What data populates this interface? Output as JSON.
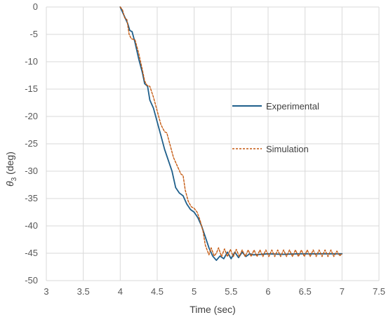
{
  "chart_data": {
    "type": "line",
    "xlabel": "Time (sec)",
    "ylabel_symbol": "θ",
    "ylabel_sub": "3",
    "ylabel_unit": " (deg)",
    "xlim": [
      3,
      7.5
    ],
    "ylim": [
      -50,
      0
    ],
    "xticks": [
      "3",
      "3.5",
      "4",
      "4.5",
      "5",
      "5.5",
      "6",
      "6.5",
      "7",
      "7.5"
    ],
    "yticks": [
      "0",
      "-5",
      "-10",
      "-15",
      "-20",
      "-25",
      "-30",
      "-35",
      "-40",
      "-45",
      "-50"
    ],
    "grid": true,
    "legend_position": "right-middle",
    "series": [
      {
        "name": "Experimental",
        "color": "#1f5f8b",
        "dash": "solid",
        "points": [
          [
            4.0,
            0.0
          ],
          [
            4.05,
            -1.5
          ],
          [
            4.1,
            -3.0
          ],
          [
            4.13,
            -4.3
          ],
          [
            4.16,
            -4.5
          ],
          [
            4.2,
            -6.5
          ],
          [
            4.25,
            -9.5
          ],
          [
            4.3,
            -12.0
          ],
          [
            4.33,
            -14.0
          ],
          [
            4.37,
            -14.5
          ],
          [
            4.4,
            -17.0
          ],
          [
            4.45,
            -18.5
          ],
          [
            4.5,
            -21.0
          ],
          [
            4.55,
            -23.5
          ],
          [
            4.6,
            -26.0
          ],
          [
            4.65,
            -28.0
          ],
          [
            4.7,
            -30.0
          ],
          [
            4.75,
            -33.0
          ],
          [
            4.8,
            -34.0
          ],
          [
            4.85,
            -34.5
          ],
          [
            4.9,
            -36.0
          ],
          [
            4.95,
            -37.0
          ],
          [
            5.0,
            -37.5
          ],
          [
            5.05,
            -38.5
          ],
          [
            5.1,
            -40.0
          ],
          [
            5.15,
            -42.0
          ],
          [
            5.2,
            -44.0
          ],
          [
            5.25,
            -45.5
          ],
          [
            5.3,
            -46.3
          ],
          [
            5.35,
            -45.5
          ],
          [
            5.4,
            -46.0
          ],
          [
            5.45,
            -44.8
          ],
          [
            5.5,
            -46.0
          ],
          [
            5.55,
            -44.8
          ],
          [
            5.6,
            -45.8
          ],
          [
            5.65,
            -44.8
          ],
          [
            5.7,
            -45.6
          ],
          [
            5.75,
            -45.1
          ],
          [
            5.8,
            -45.3
          ],
          [
            5.9,
            -45.2
          ],
          [
            6.0,
            -45.1
          ],
          [
            6.2,
            -45.2
          ],
          [
            6.4,
            -45.1
          ],
          [
            6.6,
            -45.1
          ],
          [
            6.8,
            -45.1
          ],
          [
            7.0,
            -45.1
          ]
        ]
      },
      {
        "name": "Simulation",
        "color": "#c55a11",
        "dash": "dashed",
        "points": [
          [
            4.0,
            0.0
          ],
          [
            4.03,
            -0.5
          ],
          [
            4.06,
            -2.0
          ],
          [
            4.09,
            -2.3
          ],
          [
            4.12,
            -5.0
          ],
          [
            4.15,
            -5.8
          ],
          [
            4.2,
            -6.0
          ],
          [
            4.25,
            -8.5
          ],
          [
            4.3,
            -11.5
          ],
          [
            4.33,
            -13.5
          ],
          [
            4.36,
            -14.3
          ],
          [
            4.4,
            -14.5
          ],
          [
            4.45,
            -16.5
          ],
          [
            4.5,
            -19.0
          ],
          [
            4.55,
            -21.5
          ],
          [
            4.6,
            -22.8
          ],
          [
            4.63,
            -23.0
          ],
          [
            4.67,
            -25.0
          ],
          [
            4.72,
            -27.5
          ],
          [
            4.77,
            -29.0
          ],
          [
            4.82,
            -30.5
          ],
          [
            4.85,
            -30.8
          ],
          [
            4.88,
            -33.5
          ],
          [
            4.92,
            -35.5
          ],
          [
            4.96,
            -36.5
          ],
          [
            5.0,
            -36.8
          ],
          [
            5.04,
            -37.5
          ],
          [
            5.08,
            -39.0
          ],
          [
            5.12,
            -41.0
          ],
          [
            5.15,
            -43.5
          ],
          [
            5.2,
            -45.3
          ],
          [
            5.23,
            -44.0
          ],
          [
            5.27,
            -45.5
          ],
          [
            5.3,
            -45.0
          ],
          [
            5.33,
            -44.0
          ],
          [
            5.37,
            -45.6
          ],
          [
            5.41,
            -44.2
          ],
          [
            5.45,
            -45.6
          ],
          [
            5.49,
            -44.3
          ],
          [
            5.53,
            -45.6
          ],
          [
            5.57,
            -44.3
          ],
          [
            5.61,
            -45.6
          ],
          [
            5.65,
            -44.4
          ],
          [
            5.69,
            -45.6
          ],
          [
            5.73,
            -44.4
          ],
          [
            5.77,
            -45.6
          ],
          [
            5.81,
            -44.4
          ],
          [
            5.85,
            -45.6
          ],
          [
            5.89,
            -44.4
          ],
          [
            5.93,
            -45.6
          ],
          [
            5.97,
            -44.4
          ],
          [
            6.01,
            -45.6
          ],
          [
            6.05,
            -44.4
          ],
          [
            6.09,
            -45.6
          ],
          [
            6.13,
            -44.4
          ],
          [
            6.17,
            -45.6
          ],
          [
            6.21,
            -44.4
          ],
          [
            6.25,
            -45.6
          ],
          [
            6.29,
            -44.4
          ],
          [
            6.33,
            -45.6
          ],
          [
            6.37,
            -44.4
          ],
          [
            6.41,
            -45.6
          ],
          [
            6.45,
            -44.4
          ],
          [
            6.49,
            -45.6
          ],
          [
            6.53,
            -44.4
          ],
          [
            6.57,
            -45.6
          ],
          [
            6.61,
            -44.4
          ],
          [
            6.65,
            -45.6
          ],
          [
            6.69,
            -44.4
          ],
          [
            6.73,
            -45.6
          ],
          [
            6.77,
            -44.4
          ],
          [
            6.81,
            -45.6
          ],
          [
            6.85,
            -44.4
          ],
          [
            6.89,
            -45.6
          ],
          [
            6.93,
            -44.6
          ],
          [
            6.97,
            -45.5
          ],
          [
            7.0,
            -45.0
          ]
        ]
      }
    ]
  }
}
